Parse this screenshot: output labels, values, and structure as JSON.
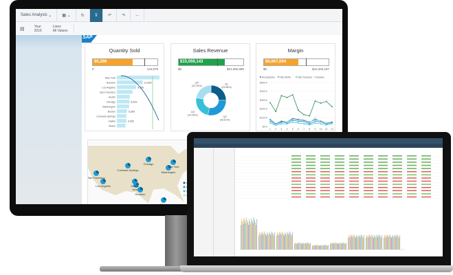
{
  "toolbar": {
    "story_title": "Sales Analysis",
    "more": "..."
  },
  "filters": [
    {
      "label": "Year",
      "value": "2016"
    },
    {
      "label": "Lines",
      "value": "All Values"
    }
  ],
  "logo": "SAP",
  "quantity_sold": {
    "title": "Quantity Sold",
    "value": "90,296",
    "min": "0",
    "max": "144,678",
    "fraction": 0.62,
    "target_fraction": 0.8,
    "cities": [
      "New York",
      "Houston",
      "Los Angeles",
      "San Francisco",
      "Austin",
      "Chicago",
      "Washington",
      "Boston",
      "Colorado Springs",
      "Dallas",
      "Miami"
    ],
    "bar_values": [
      22000,
      13342,
      9905,
      8100,
      6700,
      6519,
      6300,
      5269,
      4900,
      4932,
      4400
    ],
    "labels": [
      "",
      "13,342",
      "9,905",
      "",
      "",
      "6,519",
      "",
      "5,269",
      "",
      "4,932",
      ""
    ]
  },
  "sales_revenue": {
    "title": "Sales Revenue",
    "value": "$15,059,143",
    "min": "$0",
    "max": "$21,082,080",
    "fraction": 0.71,
    "target_fraction": 0.6,
    "quarters": [
      {
        "label": "Q1",
        "pct": "(24.86%)",
        "value": 24.86
      },
      {
        "label": "Q2",
        "pct": "(28.61%)",
        "value": 28.61
      },
      {
        "label": "Q3",
        "pct": "(24.28%)",
        "value": 24.28
      },
      {
        "label": "Q4",
        "pct": "(22.29%)",
        "value": 22.29
      }
    ]
  },
  "margin": {
    "title": "Margin",
    "value": "$6,067,094",
    "min": "$0",
    "max": "$11,334,197",
    "fraction": 0.53,
    "target_fraction": 0.65
  },
  "chart_data": {
    "type": "line",
    "x": [
      1,
      2,
      3,
      4,
      5,
      6,
      7,
      8,
      9,
      10,
      11,
      12
    ],
    "xlabel": "Month",
    "ylim": [
      0,
      500
    ],
    "yticks": [
      "$0 K",
      "$100 K",
      "$200 K",
      "$300 K",
      "$400 K",
      "$500 K"
    ],
    "series": [
      {
        "name": "Accessories",
        "color": "#2a6a8c",
        "values": [
          80,
          30,
          60,
          50,
          90,
          80,
          70,
          50,
          80,
          60,
          40,
          50
        ]
      },
      {
        "name": "City Shirts",
        "color": "#1f9ad6",
        "values": [
          60,
          20,
          50,
          40,
          70,
          60,
          55,
          30,
          60,
          50,
          30,
          40
        ]
      },
      {
        "name": "City Trousers",
        "color": "#35c0d8",
        "values": [
          40,
          15,
          30,
          30,
          50,
          40,
          30,
          20,
          40,
          30,
          20,
          30
        ]
      },
      {
        "name": "Dresses",
        "color": "#a9dcef",
        "values": [
          70,
          25,
          40,
          50,
          80,
          70,
          60,
          40,
          100,
          50,
          40,
          30
        ]
      },
      {
        "name": "",
        "color": "#2e8b57",
        "values": [
          270,
          170,
          350,
          330,
          360,
          185,
          135,
          120,
          290,
          265,
          285,
          225
        ]
      }
    ]
  },
  "map": {
    "cities": [
      "Chicago",
      "New York",
      "Washington",
      "Colorado Springs",
      "San Francisco",
      "Los Angeles",
      "Austin",
      "Houston",
      "Dallas",
      "Miami"
    ],
    "legend": [
      "Q1",
      "Q2",
      "Q3",
      "Q4"
    ],
    "legend_colors": [
      "#0b5d8a",
      "#1f9ad6",
      "#35c0d8",
      "#a9dcef"
    ]
  },
  "colors": {
    "orange": "#f7a32a",
    "green": "#1ea34a",
    "accent": "#2a6a8c"
  }
}
